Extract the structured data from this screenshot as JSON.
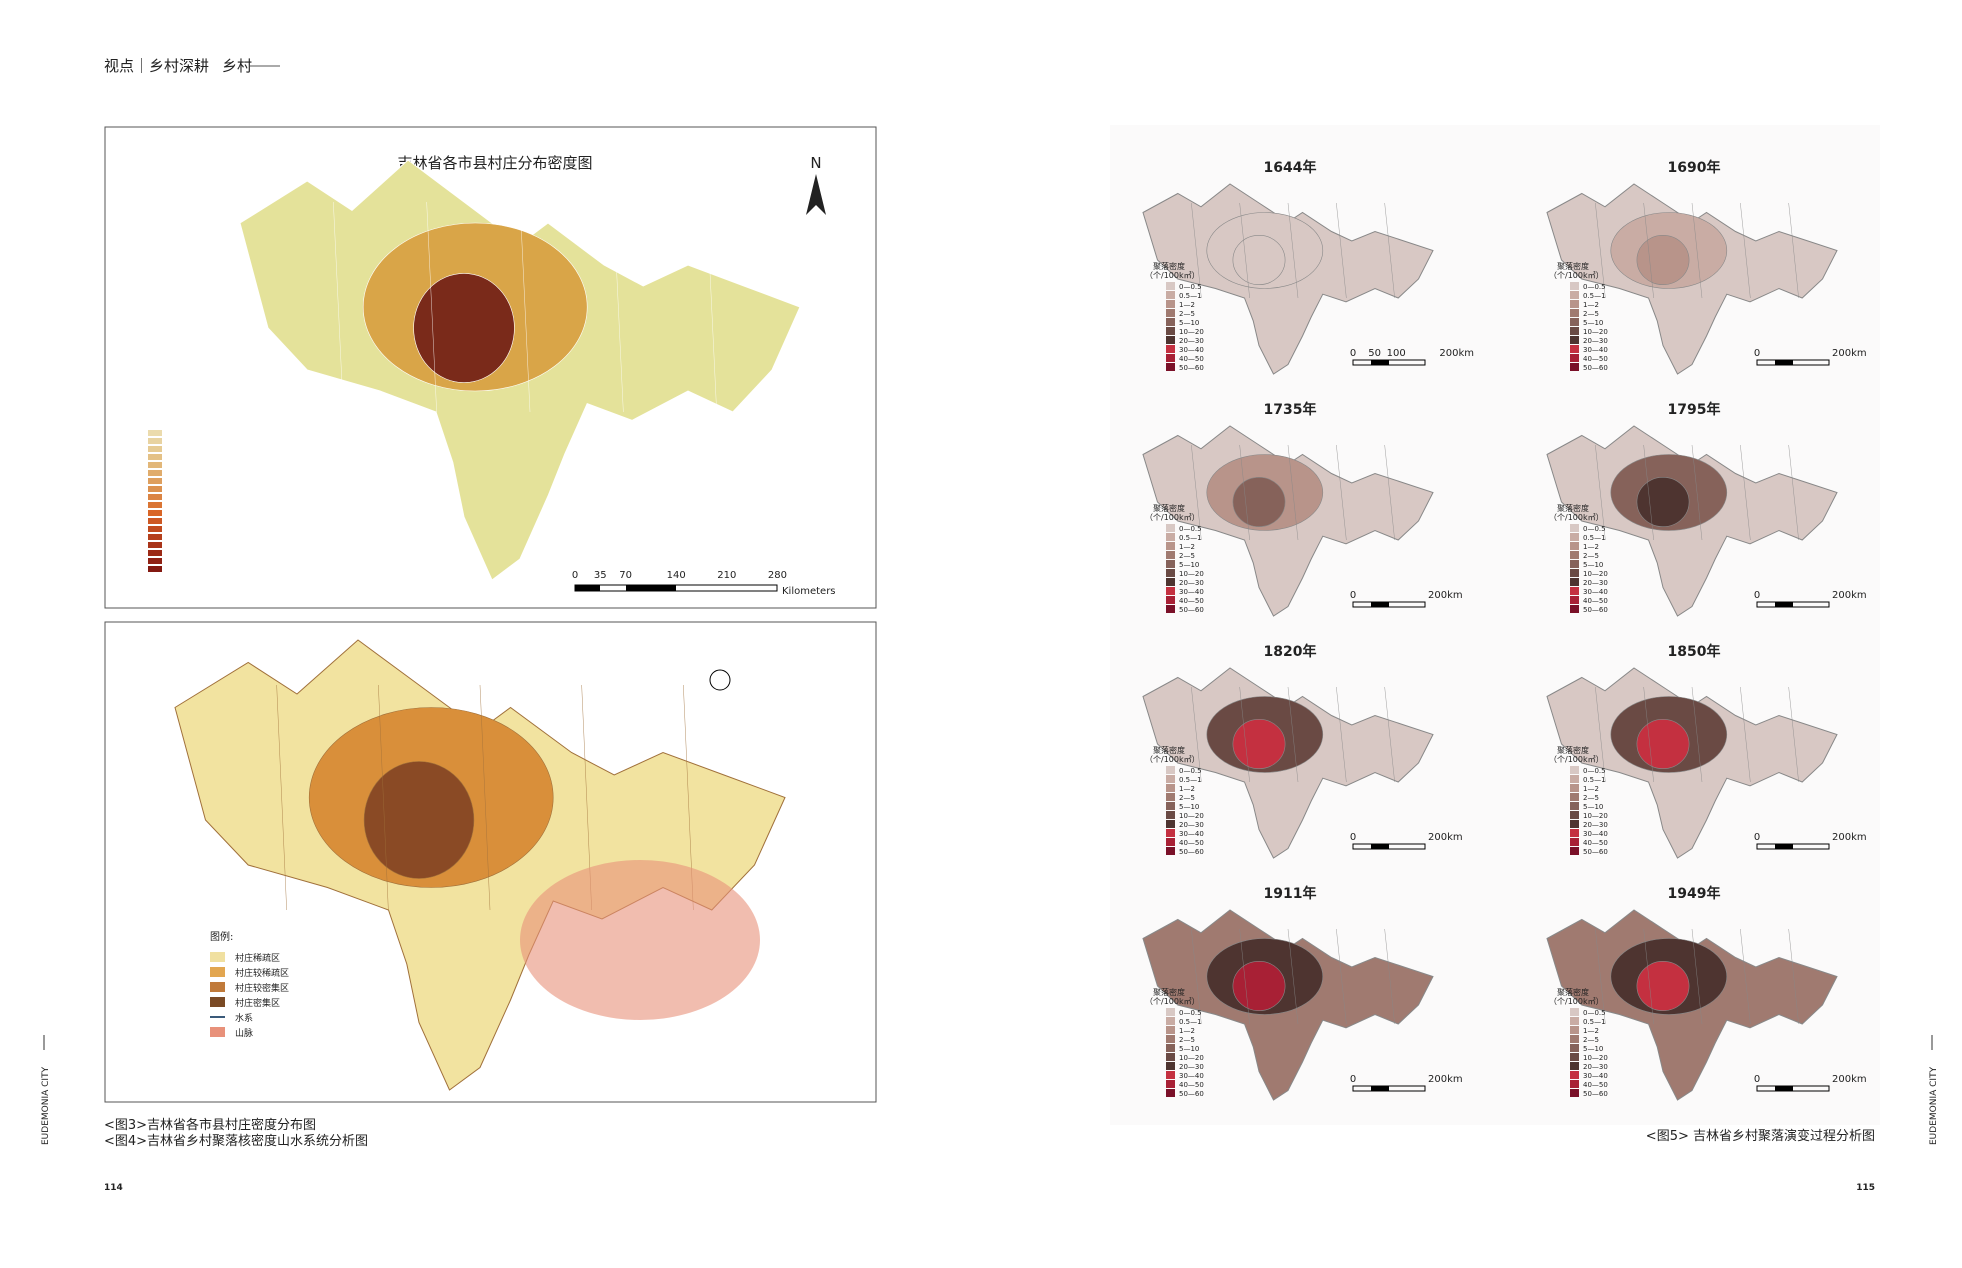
{
  "header": {
    "section": "视点｜乡村深耕",
    "logo": "乡村"
  },
  "figure3": {
    "title": "吉林省各市县村庄分布密度图",
    "north": "N",
    "scale_labels": [
      "0",
      "35",
      "70",
      "140",
      "210",
      "280"
    ],
    "scale_unit": "Kilometers",
    "colors": [
      "#e4e29a",
      "#d9a548",
      "#7a2a1a"
    ]
  },
  "figure4": {
    "legend_title": "图例:",
    "legend": [
      {
        "label": "村庄稀疏区",
        "color": "#f0e0a0"
      },
      {
        "label": "村庄较稀疏区",
        "color": "#e2a650"
      },
      {
        "label": "村庄较密集区",
        "color": "#c07a3a"
      },
      {
        "label": "村庄密集区",
        "color": "#7a4a25"
      },
      {
        "label": "水系",
        "color": "#3a5a7a"
      },
      {
        "label": "山脉",
        "color": "#e8917a"
      }
    ],
    "colors": [
      "#f2e3a0",
      "#d98f3a",
      "#8a4a25"
    ]
  },
  "captions": {
    "left": [
      "<图3>吉林省各市县村庄密度分布图",
      "<图4>吉林省乡村聚落核密度山水系统分析图"
    ],
    "right": "<图5> 吉林省乡村聚落演变过程分析图"
  },
  "page_numbers": {
    "left": "114",
    "right": "115"
  },
  "side_text": "EUDEMONIA CITY",
  "figure5": {
    "legend_title": [
      "聚落密度",
      "（个/100k㎡）"
    ],
    "legend": [
      "0—0.5",
      "0.5—1",
      "1—2",
      "2—5",
      "5—10",
      "10—20",
      "20—30",
      "30—40",
      "40—50",
      "50—60"
    ],
    "legend_colors": [
      "#d8c8c4",
      "#c9aca4",
      "#b8948a",
      "#a07a70",
      "#86625a",
      "#6a4a44",
      "#4e3430",
      "#c43040",
      "#a82035",
      "#7a1028"
    ],
    "maps": [
      {
        "year": "1644年",
        "scale_labels": [
          "0",
          "50",
          "100",
          "200km"
        ],
        "colors": [
          "#d8c8c4",
          "#d8c8c4",
          "#d8c8c4"
        ]
      },
      {
        "year": "1690年",
        "scale_labels": [
          "0",
          "200km"
        ],
        "colors": [
          "#d8c8c4",
          "#c9aca4",
          "#b8948a"
        ]
      },
      {
        "year": "1735年",
        "scale_labels": [
          "0",
          "200km"
        ],
        "colors": [
          "#d8c8c4",
          "#b8948a",
          "#86625a"
        ]
      },
      {
        "year": "1795年",
        "scale_labels": [
          "0",
          "200km"
        ],
        "colors": [
          "#d8c8c4",
          "#86625a",
          "#4e3430"
        ]
      },
      {
        "year": "1820年",
        "scale_labels": [
          "0",
          "200km"
        ],
        "colors": [
          "#d8c8c4",
          "#6a4a44",
          "#c43040"
        ]
      },
      {
        "year": "1850年",
        "scale_labels": [
          "0",
          "200km"
        ],
        "colors": [
          "#d8c8c4",
          "#6a4a44",
          "#c43040"
        ]
      },
      {
        "year": "1911年",
        "scale_labels": [
          "0",
          "200km"
        ],
        "colors": [
          "#a07a70",
          "#4e3430",
          "#a82035"
        ]
      },
      {
        "year": "1949年",
        "scale_labels": [
          "0",
          "200km"
        ],
        "colors": [
          "#a07a70",
          "#4e3430",
          "#c43040"
        ]
      }
    ]
  }
}
